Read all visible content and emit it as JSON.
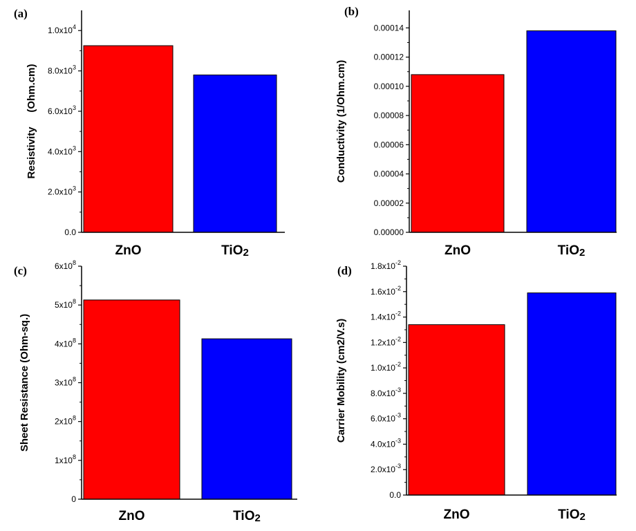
{
  "colors": {
    "zno": "#ff0000",
    "tio2": "#0000ff"
  },
  "chart_data": [
    {
      "panel_label": "(a)",
      "type": "bar",
      "categories": [
        "ZnO",
        "TiO2"
      ],
      "category_labels": [
        {
          "base": "ZnO",
          "sub": ""
        },
        {
          "base": "TiO",
          "sub": "2"
        }
      ],
      "values": [
        9250,
        7800
      ],
      "ylabel": "Resistivity     (Ohm.cm)",
      "ylim": [
        0,
        11000
      ],
      "yticks": [
        {
          "value": 0,
          "mantissa": "0.0",
          "exp": ""
        },
        {
          "value": 2000,
          "mantissa": "2.0x10",
          "exp": "3"
        },
        {
          "value": 4000,
          "mantissa": "4.0x10",
          "exp": "3"
        },
        {
          "value": 6000,
          "mantissa": "6.0x10",
          "exp": "3"
        },
        {
          "value": 8000,
          "mantissa": "8.0x10",
          "exp": "3"
        },
        {
          "value": 10000,
          "mantissa": "1.0x10",
          "exp": "4"
        }
      ]
    },
    {
      "panel_label": "(b)",
      "type": "bar",
      "categories": [
        "ZnO",
        "TiO2"
      ],
      "category_labels": [
        {
          "base": "ZnO",
          "sub": ""
        },
        {
          "base": "TiO",
          "sub": "2"
        }
      ],
      "values": [
        0.000108,
        0.000138
      ],
      "ylabel": "Conductivity (1/Ohm.cm)",
      "ylim": [
        0,
        0.000152
      ],
      "yticks": [
        {
          "value": 0,
          "mantissa": "0.00000",
          "exp": ""
        },
        {
          "value": 2e-05,
          "mantissa": "0.00002",
          "exp": ""
        },
        {
          "value": 4e-05,
          "mantissa": "0.00004",
          "exp": ""
        },
        {
          "value": 6e-05,
          "mantissa": "0.00006",
          "exp": ""
        },
        {
          "value": 8e-05,
          "mantissa": "0.00008",
          "exp": ""
        },
        {
          "value": 0.0001,
          "mantissa": "0.00010",
          "exp": ""
        },
        {
          "value": 0.00012,
          "mantissa": "0.00012",
          "exp": ""
        },
        {
          "value": 0.00014,
          "mantissa": "0.00014",
          "exp": ""
        }
      ]
    },
    {
      "panel_label": "(c)",
      "type": "bar",
      "categories": [
        "ZnO",
        "TiO2"
      ],
      "category_labels": [
        {
          "base": "ZnO",
          "sub": ""
        },
        {
          "base": "TiO",
          "sub": "2"
        }
      ],
      "values": [
        513000000,
        413000000
      ],
      "ylabel": "Sheet Resistance (Ohm-sq.)",
      "ylim": [
        0,
        600000000
      ],
      "yticks": [
        {
          "value": 0,
          "mantissa": "0",
          "exp": ""
        },
        {
          "value": 100000000,
          "mantissa": "1x10",
          "exp": "8"
        },
        {
          "value": 200000000,
          "mantissa": "2x10",
          "exp": "8"
        },
        {
          "value": 300000000,
          "mantissa": "3x10",
          "exp": "8"
        },
        {
          "value": 400000000,
          "mantissa": "4x10",
          "exp": "8"
        },
        {
          "value": 500000000,
          "mantissa": "5x10",
          "exp": "8"
        },
        {
          "value": 600000000,
          "mantissa": "6x10",
          "exp": "8"
        }
      ]
    },
    {
      "panel_label": "(d)",
      "type": "bar",
      "categories": [
        "ZnO",
        "TiO2"
      ],
      "category_labels": [
        {
          "base": "ZnO",
          "sub": ""
        },
        {
          "base": "TiO",
          "sub": "2"
        }
      ],
      "values": [
        0.0134,
        0.0159
      ],
      "ylabel": "Carrier Mobility (cm2/V.s)",
      "ylim": [
        0,
        0.018
      ],
      "yticks": [
        {
          "value": 0,
          "mantissa": "0.0",
          "exp": ""
        },
        {
          "value": 0.002,
          "mantissa": "2.0x10",
          "exp": "-3"
        },
        {
          "value": 0.004,
          "mantissa": "4.0x10",
          "exp": "-3"
        },
        {
          "value": 0.006,
          "mantissa": "6.0x10",
          "exp": "-3"
        },
        {
          "value": 0.008,
          "mantissa": "8.0x10",
          "exp": "-3"
        },
        {
          "value": 0.01,
          "mantissa": "1.0x10",
          "exp": "-2"
        },
        {
          "value": 0.012,
          "mantissa": "1.2x10",
          "exp": "-2"
        },
        {
          "value": 0.014,
          "mantissa": "1.4x10",
          "exp": "-2"
        },
        {
          "value": 0.016,
          "mantissa": "1.6x10",
          "exp": "-2"
        },
        {
          "value": 0.018,
          "mantissa": "1.8x10",
          "exp": "-2"
        }
      ]
    }
  ]
}
